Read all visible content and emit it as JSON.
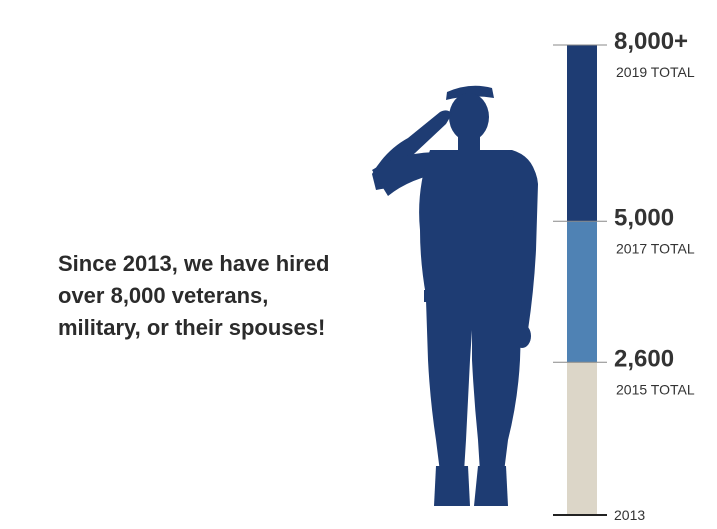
{
  "headline": "Since 2013, we have hired over 8,000 veterans, military, or their spouses!",
  "colors": {
    "dark": "#1e3c73",
    "mid": "#4f82b4",
    "light": "#dcd6c8",
    "text": "#333333"
  },
  "chart_data": {
    "type": "bar",
    "title": "",
    "ylim": [
      0,
      8000
    ],
    "segments": [
      {
        "from": 0,
        "to": 2600,
        "color": "#dcd6c8"
      },
      {
        "from": 2600,
        "to": 5000,
        "color": "#4f82b4"
      },
      {
        "from": 5000,
        "to": 8000,
        "color": "#1e3c73"
      }
    ],
    "markers": [
      {
        "value": 0,
        "label": "2013",
        "sublabel": ""
      },
      {
        "value": 2600,
        "label": "2,600",
        "sublabel": "2015 TOTAL"
      },
      {
        "value": 5000,
        "label": "5,000",
        "sublabel": "2017 TOTAL"
      },
      {
        "value": 8000,
        "label": "8,000+",
        "sublabel": "2019 TOTAL"
      }
    ]
  },
  "icons": {
    "figure": "saluting-soldier-silhouette-icon"
  }
}
